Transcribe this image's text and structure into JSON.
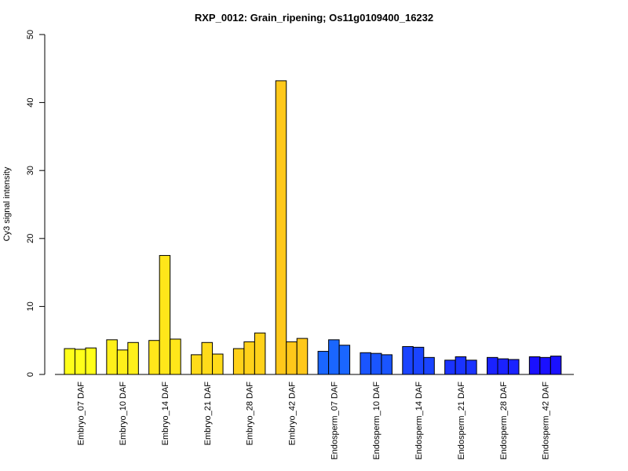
{
  "chart_data": {
    "type": "bar",
    "title": "RXP_0012: Grain_ripening; Os11g0109400_16232",
    "xlabel": "",
    "ylabel": "Cy3 signal intensity",
    "ylim": [
      0,
      50
    ],
    "yticks": [
      0,
      10,
      20,
      30,
      40,
      50
    ],
    "grid": false,
    "legend": "none",
    "bars_per_group": 3,
    "categories": [
      "Embryo_07 DAF",
      "Embryo_10 DAF",
      "Embryo_14 DAF",
      "Embryo_21 DAF",
      "Embryo_28 DAF",
      "Embryo_42 DAF",
      "Endosperm_07 DAF",
      "Endosperm_10 DAF",
      "Endosperm_14 DAF",
      "Endosperm_21 DAF",
      "Endosperm_28 DAF",
      "Endosperm_42 DAF"
    ],
    "values": [
      [
        3.8,
        3.7,
        3.9
      ],
      [
        5.1,
        3.6,
        4.7
      ],
      [
        5.0,
        17.5,
        5.2
      ],
      [
        2.9,
        4.7,
        3.0
      ],
      [
        3.8,
        4.8,
        6.1
      ],
      [
        43.2,
        4.8,
        5.3
      ],
      [
        3.4,
        5.1,
        4.3
      ],
      [
        3.2,
        3.1,
        2.9
      ],
      [
        4.1,
        4.0,
        2.5
      ],
      [
        2.1,
        2.6,
        2.1
      ],
      [
        2.5,
        2.3,
        2.2
      ],
      [
        2.6,
        2.5,
        2.7
      ]
    ],
    "colors": [
      "#ffff1a",
      "#fff01a",
      "#ffe61a",
      "#ffdb1a",
      "#ffd11a",
      "#ffc81a",
      "#1a66ff",
      "#1a55ff",
      "#1a44ff",
      "#1a33ff",
      "#1a22ff",
      "#1a11ff"
    ]
  }
}
